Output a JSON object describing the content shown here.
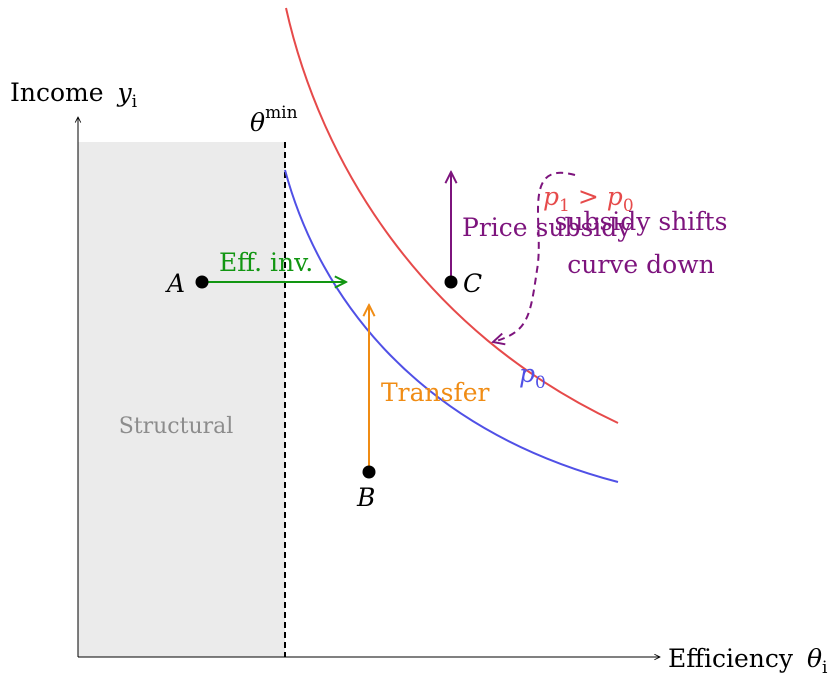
{
  "axes": {
    "y_label": "Income",
    "y_var": "y",
    "y_sub": "i",
    "x_label": "Efficiency",
    "x_var": "θ",
    "x_sub": "i"
  },
  "threshold": {
    "symbol": "θ",
    "superscript": "min"
  },
  "region": {
    "label": "Structural",
    "color": "#ebebeb",
    "text_color": "#8c8c8c"
  },
  "curves": {
    "p0": {
      "symbol": "p",
      "subscript": "0",
      "color": "#5050e6"
    },
    "p1": {
      "symbol": "p",
      "subscript": "1",
      "relation": ">",
      "compare_symbol": "p",
      "compare_subscript": "0",
      "color": "#e64a4a"
    }
  },
  "points": {
    "A": {
      "label": "A"
    },
    "B": {
      "label": "B"
    },
    "C": {
      "label": "C"
    }
  },
  "arrows": {
    "efficient_investment": {
      "label": "Eff. inv.",
      "color": "#129612"
    },
    "transfer": {
      "label": "Transfer",
      "color": "#f08c14"
    },
    "price_subsidy": {
      "label": "Price subsidy",
      "color": "#7d147d"
    }
  },
  "annotation": {
    "line1": "subsidy shifts",
    "line2": "curve down",
    "color": "#7d147d"
  }
}
